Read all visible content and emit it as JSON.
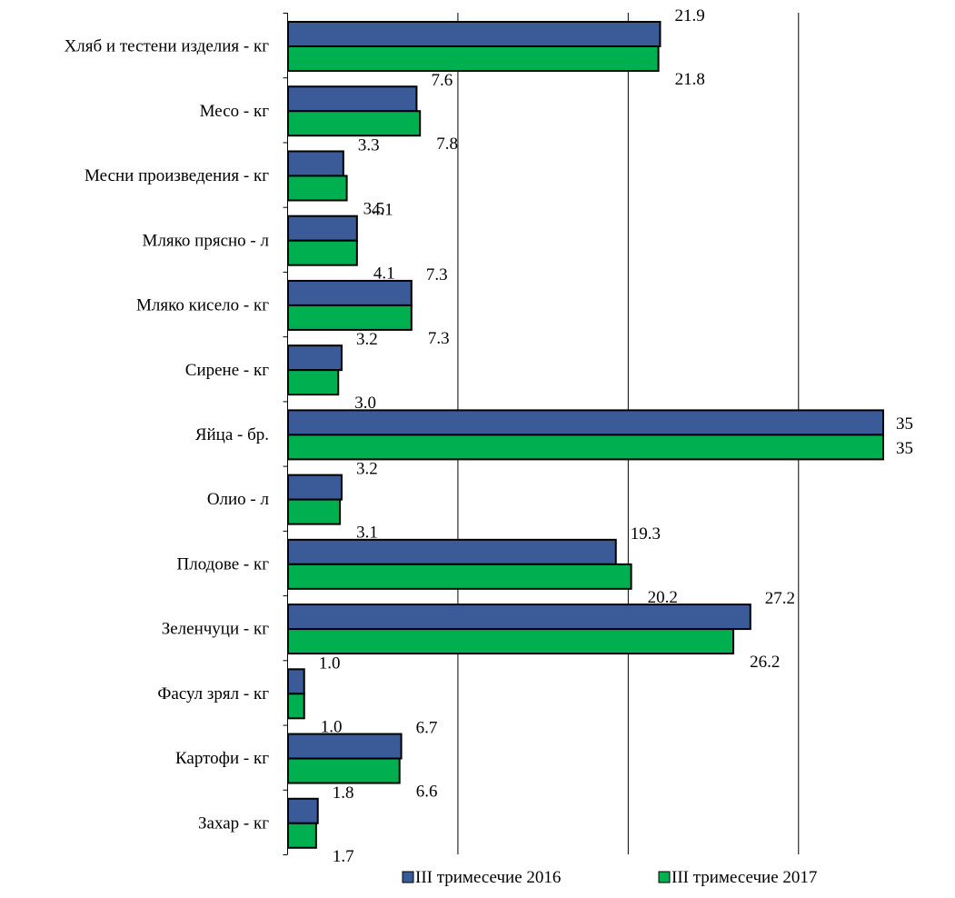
{
  "chart_data": {
    "type": "bar",
    "orientation": "horizontal",
    "title": "",
    "xlabel": "",
    "ylabel": "",
    "xlim": [
      0,
      35
    ],
    "gridlines": "vertical",
    "legend_position": "bottom",
    "categories": [
      "Хляб и тестени изделия - кг",
      "Месо - кг",
      "Месни произведения  - кг",
      "Мляко прясно - л",
      "Мляко кисело - кг",
      "Сирене - кг",
      "Яйца - бр.",
      "Олио - л",
      "Плодове - кг",
      "Зеленчуци - кг",
      "Фасул зрял - кг",
      "Картофи - кг",
      "Захар - кг"
    ],
    "series": [
      {
        "name": "III тримесечие 2016",
        "color": "#3a5a98",
        "values": [
          21.9,
          7.6,
          3.3,
          4.1,
          7.3,
          3.2,
          35,
          3.2,
          19.3,
          27.2,
          1.0,
          6.7,
          1.8
        ],
        "labels": [
          "21.9",
          "7.6",
          "3.3",
          "4.1",
          "7.3",
          "3.2",
          "35",
          "3.2",
          "19.3",
          "27.2",
          "1.0",
          "6.7",
          "1.8"
        ]
      },
      {
        "name": "III тримесечие 2017",
        "color": "#00b050",
        "values": [
          21.8,
          7.8,
          3.5,
          4.1,
          7.3,
          3.0,
          35,
          3.1,
          20.2,
          26.2,
          1.0,
          6.6,
          1.7
        ],
        "labels": [
          "21.8",
          "7.8",
          "3.5",
          "4.1",
          "7.3",
          "3.0",
          "35",
          "3.1",
          "20.2",
          "26.2",
          "1.0",
          "6.6",
          "1.7"
        ]
      }
    ]
  }
}
